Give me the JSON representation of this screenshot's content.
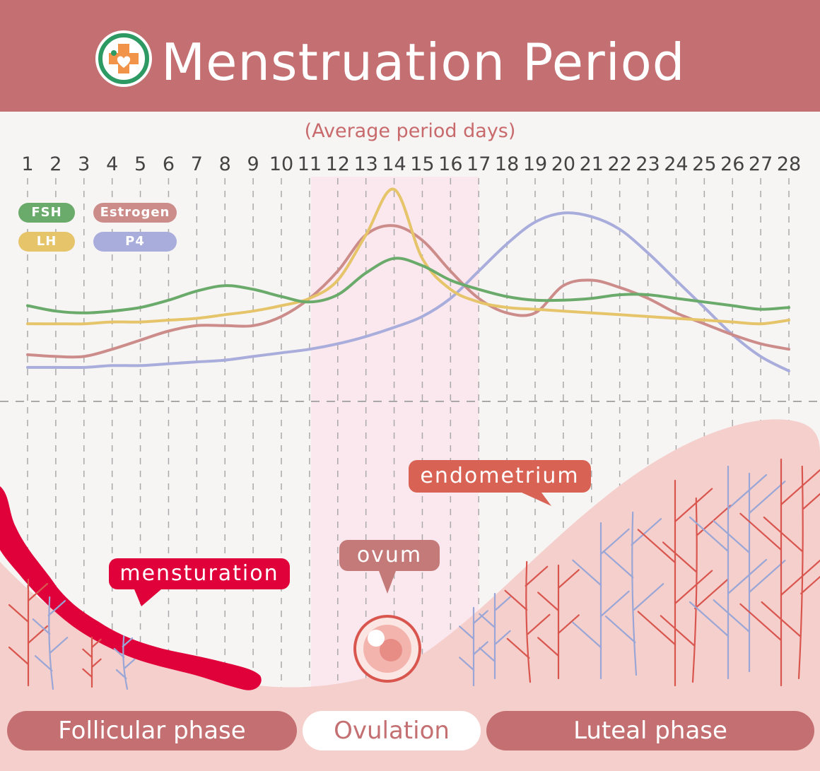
{
  "header": {
    "title": "Menstruation Period",
    "logo_icon": "medical-cross-heart-icon"
  },
  "subtitle": "(Average period days)",
  "chart_data": {
    "type": "line",
    "x": [
      1,
      2,
      3,
      4,
      5,
      6,
      7,
      8,
      9,
      10,
      11,
      12,
      13,
      14,
      15,
      16,
      17,
      18,
      19,
      20,
      21,
      22,
      23,
      24,
      25,
      26,
      27,
      28
    ],
    "xlim": [
      1,
      28
    ],
    "ovulation_window": [
      11,
      17
    ],
    "grid": true,
    "legend_position": "top-left",
    "series": [
      {
        "name": "FSH",
        "color": "#6aaa6a",
        "values": [
          0.36,
          0.33,
          0.32,
          0.33,
          0.35,
          0.39,
          0.44,
          0.47,
          0.45,
          0.41,
          0.38,
          0.42,
          0.54,
          0.62,
          0.58,
          0.5,
          0.45,
          0.41,
          0.39,
          0.39,
          0.4,
          0.42,
          0.42,
          0.4,
          0.38,
          0.36,
          0.34,
          0.35
        ]
      },
      {
        "name": "LH",
        "color": "#e5c46a",
        "values": [
          0.26,
          0.26,
          0.26,
          0.27,
          0.27,
          0.28,
          0.29,
          0.31,
          0.33,
          0.36,
          0.4,
          0.5,
          0.75,
          1.0,
          0.62,
          0.45,
          0.38,
          0.35,
          0.34,
          0.33,
          0.32,
          0.31,
          0.3,
          0.29,
          0.28,
          0.27,
          0.26,
          0.28
        ]
      },
      {
        "name": "Estrogen",
        "color": "#cc8c8a",
        "values": [
          0.09,
          0.08,
          0.08,
          0.12,
          0.17,
          0.22,
          0.25,
          0.25,
          0.25,
          0.3,
          0.4,
          0.55,
          0.75,
          0.8,
          0.72,
          0.55,
          0.4,
          0.32,
          0.32,
          0.47,
          0.5,
          0.46,
          0.4,
          0.32,
          0.26,
          0.2,
          0.15,
          0.12
        ]
      },
      {
        "name": "P4",
        "color": "#a9addb",
        "values": [
          0.02,
          0.02,
          0.02,
          0.03,
          0.03,
          0.04,
          0.05,
          0.06,
          0.08,
          0.1,
          0.12,
          0.15,
          0.19,
          0.24,
          0.3,
          0.4,
          0.55,
          0.7,
          0.82,
          0.87,
          0.85,
          0.78,
          0.65,
          0.5,
          0.35,
          0.2,
          0.08,
          0.0
        ]
      }
    ]
  },
  "callouts": {
    "menstruation": "mensturation",
    "ovum": "ovum",
    "endometrium": "endometrium"
  },
  "phases": {
    "follicular": "Follicular phase",
    "ovulation": "Ovulation",
    "luteal": "Luteal phase"
  },
  "colors": {
    "header": "#c47072",
    "blood": "#e0003a",
    "endometrium": "#f5cfcc",
    "ovulation_band": "#fbe8ee",
    "red_vessel": "#d9564f",
    "blue_vessel": "#9aa6d6"
  }
}
